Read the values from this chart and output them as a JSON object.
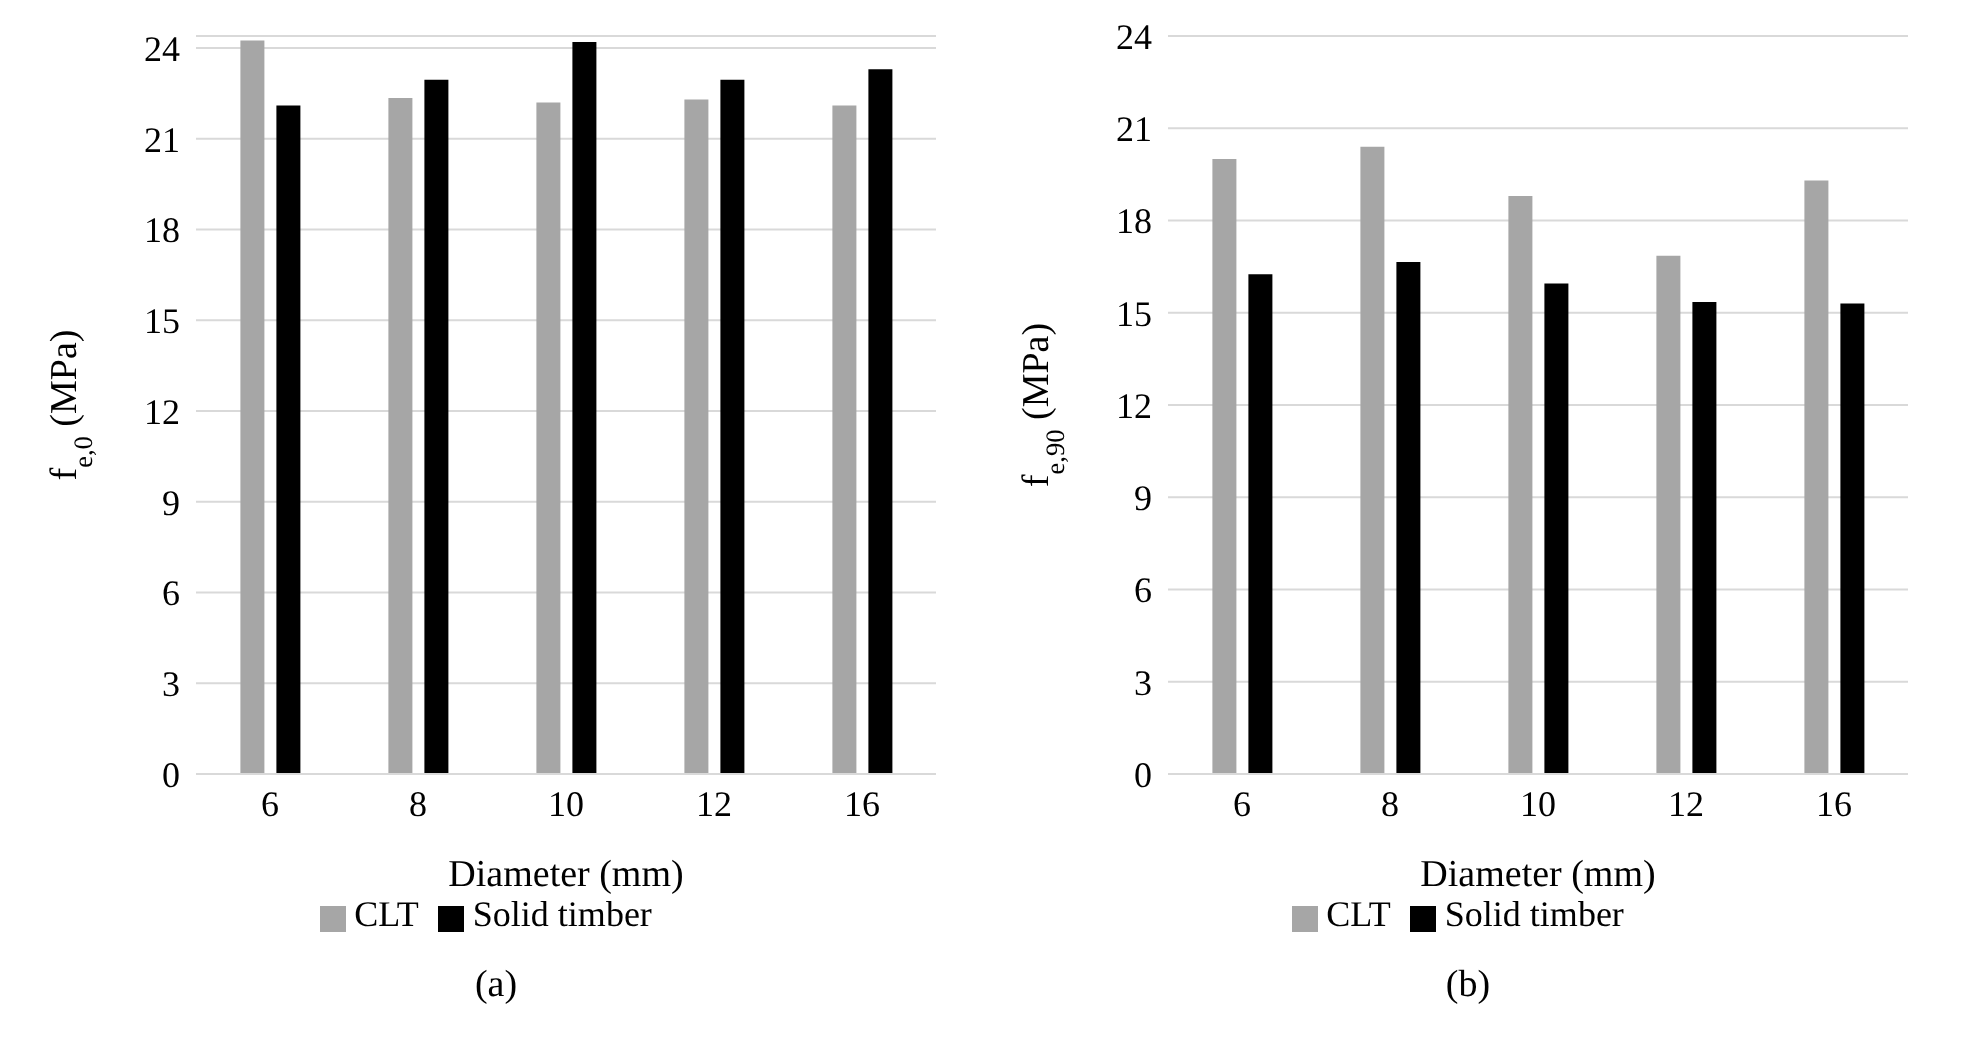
{
  "chart_data": [
    {
      "type": "bar",
      "categories": [
        "6",
        "8",
        "10",
        "12",
        "16"
      ],
      "xlabel": "Diameter (mm)",
      "ylabel": "f$_{e,0}$ (MPa)",
      "ylim": [
        0,
        24.4
      ],
      "yticks": [
        0,
        3,
        6,
        9,
        12,
        15,
        18,
        21,
        24
      ],
      "grid": "y",
      "legend": "bottom",
      "annotations": [
        "(a)"
      ],
      "series": [
        {
          "name": "CLT",
          "color": "#a6a6a6",
          "values": [
            24.25,
            22.35,
            22.2,
            22.3,
            22.1
          ]
        },
        {
          "name": "Solid timber",
          "color": "#000000",
          "values": [
            22.1,
            22.95,
            24.2,
            22.95,
            23.3
          ]
        }
      ]
    },
    {
      "type": "bar",
      "categories": [
        "6",
        "8",
        "10",
        "12",
        "16"
      ],
      "xlabel": "Diameter (mm)",
      "ylabel": "f$_{e,90}$ (MPa)",
      "ylim": [
        0,
        24
      ],
      "yticks": [
        0,
        3,
        6,
        9,
        12,
        15,
        18,
        21,
        24
      ],
      "grid": "y",
      "legend": "bottom",
      "annotations": [
        "(b)"
      ],
      "series": [
        {
          "name": "CLT",
          "color": "#a6a6a6",
          "values": [
            20.0,
            20.4,
            18.8,
            16.85,
            19.3
          ]
        },
        {
          "name": "Solid timber",
          "color": "#000000",
          "values": [
            16.25,
            16.65,
            15.95,
            15.35,
            15.3
          ]
        }
      ]
    }
  ]
}
